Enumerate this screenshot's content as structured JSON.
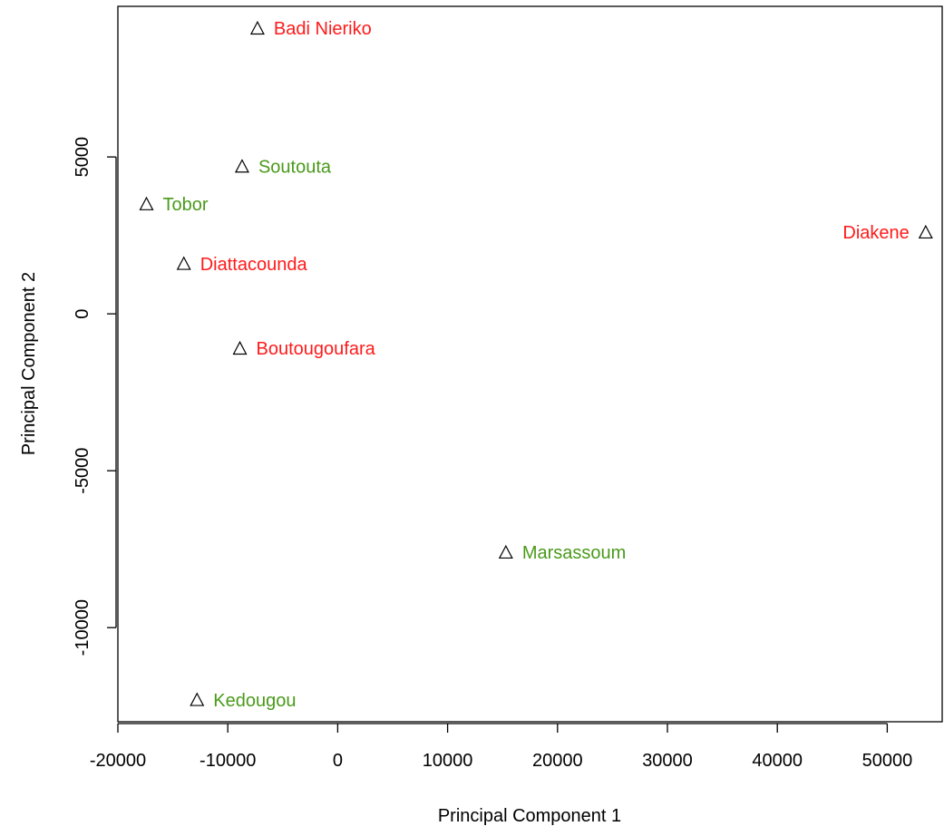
{
  "chart_data": {
    "type": "scatter",
    "title": "",
    "xlabel": "Principal Component 1",
    "ylabel": "Principal Component 2",
    "xlim": [
      -20000,
      55000
    ],
    "ylim": [
      -13000,
      9800
    ],
    "x_ticks": [
      -20000,
      -10000,
      0,
      10000,
      20000,
      30000,
      40000,
      50000
    ],
    "x_tick_labels": [
      "-20000",
      "-10000",
      "0",
      "10000",
      "20000",
      "30000",
      "40000",
      "50000"
    ],
    "y_ticks": [
      -10000,
      -5000,
      0,
      5000
    ],
    "y_tick_labels": [
      "-10000",
      "-5000",
      "0",
      "5000"
    ],
    "grid": false,
    "marker": "open-triangle",
    "colors": {
      "red": "#ff1a1a",
      "green": "#4a9a1a",
      "marker": "#000000"
    },
    "points": [
      {
        "label": "Badi Nieriko",
        "x": -7300,
        "y": 9100,
        "color": "red",
        "label_side": "right"
      },
      {
        "label": "Soutouta",
        "x": -8700,
        "y": 4700,
        "color": "green",
        "label_side": "right"
      },
      {
        "label": "Tobor",
        "x": -17400,
        "y": 3500,
        "color": "green",
        "label_side": "right"
      },
      {
        "label": "Diakene",
        "x": 53500,
        "y": 2600,
        "color": "red",
        "label_side": "left"
      },
      {
        "label": "Diattacounda",
        "x": -14000,
        "y": 1600,
        "color": "red",
        "label_side": "right"
      },
      {
        "label": "Boutougoufara",
        "x": -8900,
        "y": -1100,
        "color": "red",
        "label_side": "right"
      },
      {
        "label": "Marsassoum",
        "x": 15300,
        "y": -7600,
        "color": "green",
        "label_side": "right"
      },
      {
        "label": "Kedougou",
        "x": -12800,
        "y": -12300,
        "color": "green",
        "label_side": "right"
      }
    ]
  }
}
